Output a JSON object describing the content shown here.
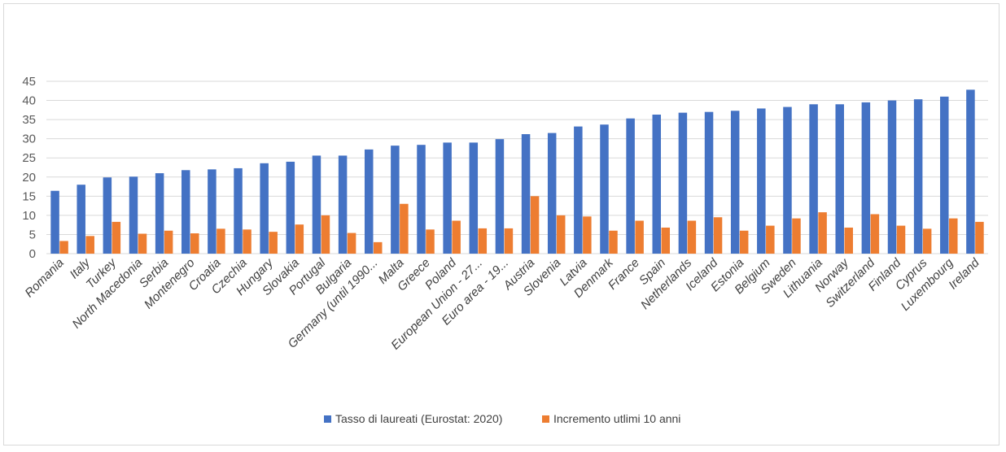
{
  "chart_data": {
    "type": "bar",
    "title": "",
    "xlabel": "",
    "ylabel": "",
    "ylim": [
      0,
      45
    ],
    "yticks": [
      0,
      5,
      10,
      15,
      20,
      25,
      30,
      35,
      40,
      45
    ],
    "grid": true,
    "legend_position": "bottom",
    "categories": [
      "Romania",
      "Italy",
      "Turkey",
      "North Macedonia",
      "Serbia",
      "Montenegro",
      "Croatia",
      "Czechia",
      "Hungary",
      "Slovakia",
      "Portugal",
      "Bulgaria",
      "Germany (until 1990...",
      "Malta",
      "Greece",
      "Poland",
      "European Union - 27...",
      "Euro area - 19...",
      "Austria",
      "Slovenia",
      "Latvia",
      "Denmark",
      "France",
      "Spain",
      "Netherlands",
      "Iceland",
      "Estonia",
      "Belgium",
      "Sweden",
      "Lithuania",
      "Norway",
      "Switzerland",
      "Finland",
      "Cyprus",
      "Luxembourg",
      "Ireland"
    ],
    "series": [
      {
        "name": "Tasso di laureati (Eurostat: 2020)",
        "color": "#4472c4",
        "values": [
          16.4,
          18.0,
          19.9,
          20.1,
          21.0,
          21.8,
          22.0,
          22.3,
          23.6,
          24.0,
          25.6,
          25.6,
          27.2,
          28.2,
          28.4,
          29.0,
          29.0,
          29.9,
          31.2,
          31.5,
          33.2,
          33.7,
          35.3,
          36.3,
          36.8,
          37.0,
          37.3,
          37.9,
          38.3,
          39.0,
          39.0,
          39.5,
          40.0,
          40.3,
          41.0,
          42.8
        ]
      },
      {
        "name": "Incremento utlimi 10 anni",
        "color": "#ed7d31",
        "values": [
          3.3,
          4.6,
          8.3,
          5.2,
          6.0,
          5.3,
          6.5,
          6.3,
          5.7,
          7.6,
          10.0,
          5.4,
          3.0,
          13.0,
          6.3,
          8.6,
          6.6,
          6.6,
          15.0,
          10.0,
          9.7,
          6.0,
          8.6,
          6.8,
          8.6,
          9.5,
          6.0,
          7.3,
          9.2,
          10.8,
          6.8,
          10.3,
          7.3,
          6.5,
          9.2,
          8.3
        ]
      }
    ]
  }
}
